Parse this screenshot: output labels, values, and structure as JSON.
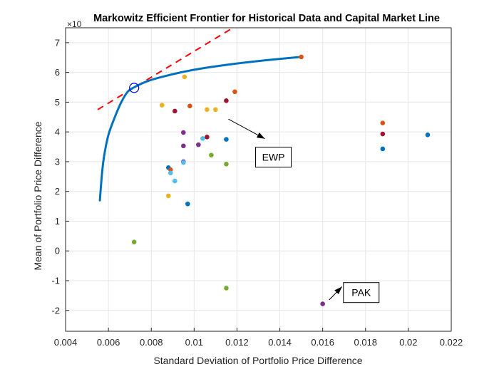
{
  "chart_data": {
    "type": "scatter",
    "title": "Markowitz Efficient Frontier for Historical Data and Capital Market Line",
    "xlabel": "Standard Deviation of Portfolio Price Difference",
    "ylabel": "Mean of Portfolio Price Difference",
    "y_exponent_label": "×10",
    "xlim": [
      0.004,
      0.022
    ],
    "ylim": [
      -2.7,
      7.5
    ],
    "x_ticks": [
      0.004,
      0.006,
      0.008,
      0.01,
      0.012,
      0.014,
      0.016,
      0.018,
      0.02,
      0.022
    ],
    "x_tick_labels": [
      "0.004",
      "0.006",
      "0.008",
      "0.01",
      "0.012",
      "0.014",
      "0.016",
      "0.018",
      "0.02",
      "0.022"
    ],
    "y_ticks": [
      -2,
      -1,
      0,
      1,
      2,
      3,
      4,
      5,
      6,
      7
    ],
    "y_tick_labels": [
      "-2",
      "-1",
      "0",
      "1",
      "2",
      "3",
      "4",
      "5",
      "6",
      "7"
    ],
    "grid": true,
    "series": [
      {
        "kind": "frontier",
        "color": "#0072BD",
        "x": [
          0.0056,
          0.0057,
          0.0058,
          0.006,
          0.0063,
          0.0066,
          0.0069,
          0.0072,
          0.0078,
          0.0085,
          0.0095,
          0.0105,
          0.012,
          0.0135,
          0.015
        ],
        "y": [
          1.7,
          2.6,
          3.2,
          3.9,
          4.5,
          5.0,
          5.35,
          5.5,
          5.7,
          5.85,
          6.02,
          6.15,
          6.3,
          6.42,
          6.52
        ]
      },
      {
        "kind": "capital-market-line",
        "color": "#FF0000",
        "x": [
          0.0055,
          0.0117
        ],
        "y": [
          4.75,
          7.45
        ]
      },
      {
        "kind": "tangency-portfolio",
        "color": "#0000FF",
        "x": [
          0.0072
        ],
        "y": [
          5.48
        ]
      },
      {
        "kind": "assets",
        "points": [
          {
            "x": 0.015,
            "y": 6.52,
            "color": "#D95319"
          },
          {
            "x": 0.00955,
            "y": 5.85,
            "color": "#EDB120"
          },
          {
            "x": 0.0119,
            "y": 5.35,
            "color": "#D95319"
          },
          {
            "x": 0.0115,
            "y": 5.05,
            "color": "#A2142F"
          },
          {
            "x": 0.0085,
            "y": 4.9,
            "color": "#EDB120"
          },
          {
            "x": 0.0098,
            "y": 4.87,
            "color": "#D95319"
          },
          {
            "x": 0.0091,
            "y": 4.7,
            "color": "#A2142F"
          },
          {
            "x": 0.0106,
            "y": 4.75,
            "color": "#EDB120"
          },
          {
            "x": 0.011,
            "y": 4.75,
            "color": "#EDB120"
          },
          {
            "x": 0.0095,
            "y": 3.98,
            "color": "#7E2F8E"
          },
          {
            "x": 0.0106,
            "y": 3.83,
            "color": "#A2142F"
          },
          {
            "x": 0.0104,
            "y": 3.78,
            "color": "#4DBEEE"
          },
          {
            "x": 0.0115,
            "y": 3.75,
            "color": "#0072BD"
          },
          {
            "x": 0.0095,
            "y": 3.53,
            "color": "#7E2F8E"
          },
          {
            "x": 0.0102,
            "y": 3.57,
            "color": "#7E2F8E"
          },
          {
            "x": 0.0108,
            "y": 3.22,
            "color": "#77AC30"
          },
          {
            "x": 0.0095,
            "y": 3.0,
            "color": "#7E2F8E"
          },
          {
            "x": 0.0095,
            "y": 2.97,
            "color": "#4DBEEE"
          },
          {
            "x": 0.0115,
            "y": 2.92,
            "color": "#77AC30"
          },
          {
            "x": 0.0088,
            "y": 2.8,
            "color": "#0072BD"
          },
          {
            "x": 0.0089,
            "y": 2.73,
            "color": "#D95319"
          },
          {
            "x": 0.0089,
            "y": 2.62,
            "color": "#4DBEEE"
          },
          {
            "x": 0.0091,
            "y": 2.35,
            "color": "#4DBEEE"
          },
          {
            "x": 0.0088,
            "y": 1.85,
            "color": "#EDB120"
          },
          {
            "x": 0.0097,
            "y": 1.58,
            "color": "#0072BD"
          },
          {
            "x": 0.0072,
            "y": 0.3,
            "color": "#77AC30"
          },
          {
            "x": 0.0115,
            "y": -1.25,
            "color": "#77AC30"
          },
          {
            "x": 0.016,
            "y": -1.78,
            "color": "#7E2F8E"
          },
          {
            "x": 0.0188,
            "y": 4.3,
            "color": "#D95319"
          },
          {
            "x": 0.0188,
            "y": 3.93,
            "color": "#A2142F"
          },
          {
            "x": 0.0188,
            "y": 3.43,
            "color": "#0072BD"
          },
          {
            "x": 0.0209,
            "y": 3.9,
            "color": "#0072BD"
          }
        ]
      }
    ],
    "annotations": [
      {
        "text": "EWP",
        "arrow_tail": [
          0.0116,
          4.43
        ],
        "arrow_head": [
          0.0133,
          3.77
        ],
        "box_center": [
          0.0137,
          3.15
        ]
      },
      {
        "text": "PAK",
        "arrow_tail": [
          0.0163,
          -1.65
        ],
        "arrow_head": [
          0.0169,
          -1.2
        ],
        "box_center": [
          0.0178,
          -1.4
        ]
      }
    ]
  }
}
